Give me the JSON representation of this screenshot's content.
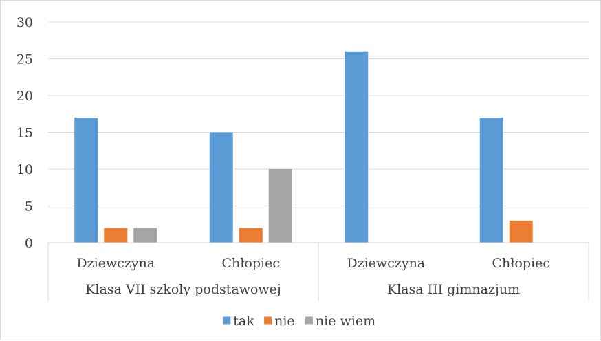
{
  "chart_data": {
    "type": "bar",
    "title": "",
    "xlabel": "",
    "ylabel": "",
    "ylim": [
      0,
      30
    ],
    "yticks": [
      0,
      5,
      10,
      15,
      20,
      25,
      30
    ],
    "grid": true,
    "legend_position": "bottom",
    "groups": [
      {
        "label": "Klasa VII szkoly podstawowej",
        "categories": [
          "Dziewczyna",
          "Chłopiec"
        ]
      },
      {
        "label": "Klasa III gimnazjum",
        "categories": [
          "Dziewczyna",
          "Chłopiec"
        ]
      }
    ],
    "categories": [
      "Dziewczyna",
      "Chłopiec",
      "Dziewczyna",
      "Chłopiec"
    ],
    "series": [
      {
        "name": "tak",
        "color": "#5b9bd5",
        "values": [
          17,
          15,
          26,
          17
        ]
      },
      {
        "name": "nie",
        "color": "#ed7d31",
        "values": [
          2,
          2,
          0,
          3
        ]
      },
      {
        "name": "nie wiem",
        "color": "#a5a5a5",
        "values": [
          2,
          10,
          0,
          0
        ]
      }
    ]
  }
}
